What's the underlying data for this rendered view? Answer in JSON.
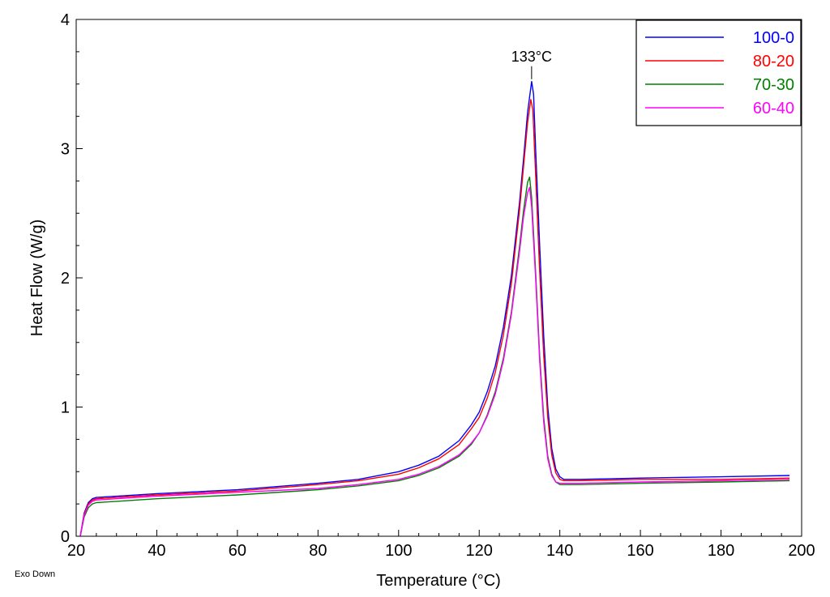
{
  "chart_data": {
    "type": "line",
    "xlabel": "Temperature (°C)",
    "ylabel": "Heat Flow (W/g)",
    "xlim": [
      20,
      200
    ],
    "ylim": [
      0,
      4
    ],
    "xticks": [
      20,
      40,
      60,
      80,
      100,
      120,
      140,
      160,
      180,
      200
    ],
    "yticks": [
      0,
      1,
      2,
      3,
      4
    ],
    "corner_note": "Exo Down",
    "annotation": {
      "text": "133°C",
      "x": 133,
      "y": 3.55
    },
    "legend_position": "top-right",
    "series": [
      {
        "name": "100-0",
        "color": "#0000ff",
        "points": [
          [
            21,
            0.0
          ],
          [
            22,
            0.18
          ],
          [
            23,
            0.26
          ],
          [
            24,
            0.29
          ],
          [
            25,
            0.3
          ],
          [
            30,
            0.31
          ],
          [
            40,
            0.33
          ],
          [
            60,
            0.36
          ],
          [
            80,
            0.41
          ],
          [
            90,
            0.44
          ],
          [
            100,
            0.5
          ],
          [
            105,
            0.55
          ],
          [
            110,
            0.62
          ],
          [
            115,
            0.74
          ],
          [
            118,
            0.86
          ],
          [
            120,
            0.96
          ],
          [
            122,
            1.12
          ],
          [
            124,
            1.32
          ],
          [
            126,
            1.62
          ],
          [
            128,
            2.02
          ],
          [
            130,
            2.58
          ],
          [
            131,
            2.92
          ],
          [
            132,
            3.28
          ],
          [
            133,
            3.52
          ],
          [
            133.5,
            3.42
          ],
          [
            134,
            3.0
          ],
          [
            135,
            2.25
          ],
          [
            136,
            1.55
          ],
          [
            137,
            1.0
          ],
          [
            138,
            0.68
          ],
          [
            139,
            0.52
          ],
          [
            140,
            0.46
          ],
          [
            141,
            0.44
          ],
          [
            145,
            0.44
          ],
          [
            160,
            0.45
          ],
          [
            180,
            0.46
          ],
          [
            197,
            0.47
          ]
        ]
      },
      {
        "name": "80-20",
        "color": "#ff0000",
        "points": [
          [
            21,
            0.0
          ],
          [
            22,
            0.17
          ],
          [
            23,
            0.25
          ],
          [
            24,
            0.28
          ],
          [
            25,
            0.29
          ],
          [
            30,
            0.3
          ],
          [
            40,
            0.32
          ],
          [
            60,
            0.35
          ],
          [
            80,
            0.4
          ],
          [
            90,
            0.43
          ],
          [
            100,
            0.48
          ],
          [
            105,
            0.53
          ],
          [
            110,
            0.6
          ],
          [
            115,
            0.71
          ],
          [
            118,
            0.83
          ],
          [
            120,
            0.92
          ],
          [
            122,
            1.07
          ],
          [
            124,
            1.27
          ],
          [
            126,
            1.56
          ],
          [
            128,
            1.96
          ],
          [
            130,
            2.52
          ],
          [
            131,
            2.86
          ],
          [
            132,
            3.2
          ],
          [
            132.8,
            3.38
          ],
          [
            133.3,
            3.3
          ],
          [
            134,
            2.8
          ],
          [
            135,
            2.05
          ],
          [
            136,
            1.4
          ],
          [
            137,
            0.92
          ],
          [
            138,
            0.63
          ],
          [
            139,
            0.49
          ],
          [
            140,
            0.44
          ],
          [
            141,
            0.43
          ],
          [
            145,
            0.43
          ],
          [
            160,
            0.44
          ],
          [
            180,
            0.44
          ],
          [
            197,
            0.45
          ]
        ]
      },
      {
        "name": "70-30",
        "color": "#008000",
        "points": [
          [
            21,
            0.0
          ],
          [
            22,
            0.15
          ],
          [
            23,
            0.22
          ],
          [
            24,
            0.25
          ],
          [
            25,
            0.26
          ],
          [
            30,
            0.27
          ],
          [
            40,
            0.29
          ],
          [
            60,
            0.32
          ],
          [
            80,
            0.36
          ],
          [
            90,
            0.39
          ],
          [
            100,
            0.43
          ],
          [
            105,
            0.47
          ],
          [
            110,
            0.53
          ],
          [
            115,
            0.62
          ],
          [
            118,
            0.71
          ],
          [
            120,
            0.8
          ],
          [
            122,
            0.94
          ],
          [
            124,
            1.12
          ],
          [
            126,
            1.38
          ],
          [
            128,
            1.74
          ],
          [
            130,
            2.24
          ],
          [
            131,
            2.52
          ],
          [
            132,
            2.74
          ],
          [
            132.5,
            2.78
          ],
          [
            133,
            2.62
          ],
          [
            134,
            2.05
          ],
          [
            135,
            1.4
          ],
          [
            136,
            0.92
          ],
          [
            137,
            0.62
          ],
          [
            138,
            0.48
          ],
          [
            139,
            0.42
          ],
          [
            140,
            0.4
          ],
          [
            145,
            0.4
          ],
          [
            160,
            0.41
          ],
          [
            180,
            0.42
          ],
          [
            197,
            0.43
          ]
        ]
      },
      {
        "name": "60-40",
        "color": "#ff00ff",
        "points": [
          [
            21,
            0.0
          ],
          [
            22,
            0.16
          ],
          [
            23,
            0.24
          ],
          [
            24,
            0.27
          ],
          [
            25,
            0.28
          ],
          [
            30,
            0.29
          ],
          [
            40,
            0.31
          ],
          [
            60,
            0.34
          ],
          [
            80,
            0.37
          ],
          [
            90,
            0.4
          ],
          [
            100,
            0.44
          ],
          [
            105,
            0.48
          ],
          [
            110,
            0.54
          ],
          [
            115,
            0.63
          ],
          [
            118,
            0.72
          ],
          [
            120,
            0.8
          ],
          [
            122,
            0.93
          ],
          [
            124,
            1.1
          ],
          [
            126,
            1.36
          ],
          [
            128,
            1.72
          ],
          [
            130,
            2.2
          ],
          [
            131,
            2.47
          ],
          [
            132,
            2.66
          ],
          [
            132.5,
            2.7
          ],
          [
            133,
            2.55
          ],
          [
            134,
            2.0
          ],
          [
            135,
            1.36
          ],
          [
            136,
            0.88
          ],
          [
            137,
            0.6
          ],
          [
            138,
            0.47
          ],
          [
            139,
            0.42
          ],
          [
            140,
            0.41
          ],
          [
            145,
            0.41
          ],
          [
            160,
            0.42
          ],
          [
            180,
            0.43
          ],
          [
            197,
            0.44
          ]
        ]
      }
    ]
  }
}
